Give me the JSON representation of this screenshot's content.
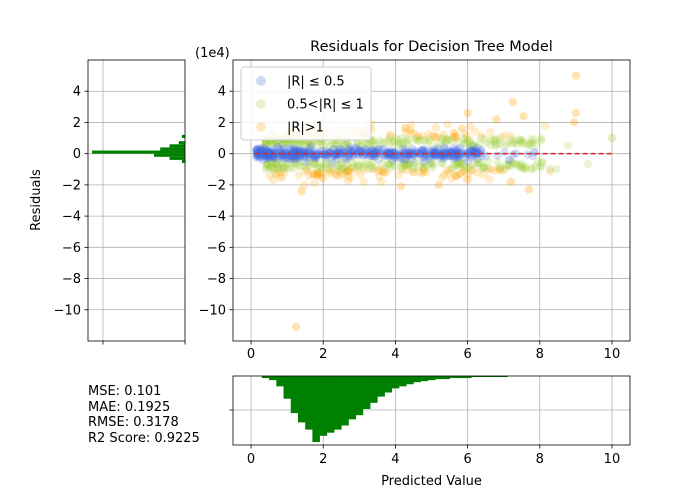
{
  "chart_data": [
    {
      "type": "scatter",
      "title": "Residuals for Decision Tree Model",
      "xlabel": "",
      "ylabel": "Residuals",
      "y_scale_label": "(1e4)",
      "xlim": [
        -0.5,
        10.5
      ],
      "ylim": [
        -12,
        6
      ],
      "x_ticks": [
        0,
        2,
        4,
        6,
        8,
        10
      ],
      "y_ticks": [
        4,
        2,
        0,
        -2,
        -4,
        -6,
        -8,
        -10
      ],
      "grid": true,
      "legend_placement": "top-left",
      "reference_line": {
        "y": 0,
        "x_range": [
          0.1,
          10
        ],
        "color": "#d62728",
        "style": "dashed"
      },
      "series": [
        {
          "name": "|R| ≤ 0.5",
          "color": "#4169e1",
          "x_range": [
            0.15,
            8.0
          ],
          "y_spread": 0.5
        },
        {
          "name": "0.5<|R| ≤ 1",
          "color": "#9acd32",
          "x_range": [
            0.4,
            10.0
          ],
          "y_spread": 1.0
        },
        {
          "name": "|R|>1",
          "color": "#ffa500",
          "x_range": [
            0.5,
            9.0
          ],
          "y_spread": 1.8
        }
      ],
      "outliers": [
        {
          "x": 9.0,
          "y": 5.0,
          "series": 2
        },
        {
          "x": 9.0,
          "y": 2.6,
          "series": 2
        },
        {
          "x": 8.95,
          "y": 2.0,
          "series": 2
        },
        {
          "x": 7.25,
          "y": 3.3,
          "series": 2
        },
        {
          "x": 6.0,
          "y": 2.6,
          "series": 2
        },
        {
          "x": 6.8,
          "y": 2.2,
          "series": 2
        },
        {
          "x": 7.55,
          "y": 2.4,
          "series": 2
        },
        {
          "x": 5.85,
          "y": 1.6,
          "series": 2
        },
        {
          "x": 1.25,
          "y": -11.1,
          "series": 2
        },
        {
          "x": 1.4,
          "y": -2.4,
          "series": 2
        },
        {
          "x": 7.7,
          "y": -2.3,
          "series": 2
        },
        {
          "x": 4.15,
          "y": -2.1,
          "series": 2
        },
        {
          "x": 5.2,
          "y": -2.0,
          "series": 2
        },
        {
          "x": 7.2,
          "y": -1.8,
          "series": 2
        },
        {
          "x": 10.0,
          "y": 1.0,
          "series": 1
        },
        {
          "x": 7.8,
          "y": 0.7,
          "series": 1
        },
        {
          "x": 7.15,
          "y": -0.4,
          "series": 0
        },
        {
          "x": 7.85,
          "y": 0.1,
          "series": 0
        }
      ]
    },
    {
      "type": "bar",
      "title": "",
      "orientation": "horizontal",
      "description_role": "residual histogram",
      "color": "#008000",
      "bins_y": [
        1.0,
        0.6,
        0.4,
        0.2,
        0.0,
        -0.2,
        -0.4,
        -0.6
      ],
      "values": [
        1,
        2,
        5,
        8,
        30,
        10,
        5,
        1
      ],
      "ylim": [
        -12,
        6
      ]
    },
    {
      "type": "bar",
      "title": "",
      "xlabel": "Predicted Value",
      "x_ticks": [
        0,
        2,
        4,
        6,
        8,
        10
      ],
      "xlim": [
        -0.5,
        10.5
      ],
      "color": "#008000",
      "bins_x": [
        0.3,
        0.5,
        0.7,
        0.9,
        1.1,
        1.3,
        1.5,
        1.7,
        1.9,
        2.1,
        2.3,
        2.5,
        2.7,
        2.9,
        3.1,
        3.3,
        3.5,
        3.7,
        3.9,
        4.1,
        4.3,
        4.5,
        4.7,
        4.9,
        5.1,
        5.3,
        5.5,
        5.7,
        5.9,
        6.1,
        6.3,
        6.5,
        6.7,
        6.9
      ],
      "values": [
        2,
        4,
        10,
        22,
        36,
        45,
        52,
        64,
        58,
        55,
        52,
        48,
        42,
        38,
        32,
        26,
        20,
        16,
        12,
        10,
        8,
        6,
        5,
        4,
        3,
        3,
        2,
        2,
        2,
        1,
        1,
        1,
        1,
        1
      ]
    }
  ],
  "metrics": {
    "mse": "MSE: 0.101",
    "mae": "MAE: 0.1925",
    "rmse": "RMSE: 0.3178",
    "r2": "R2 Score: 0.9225"
  }
}
